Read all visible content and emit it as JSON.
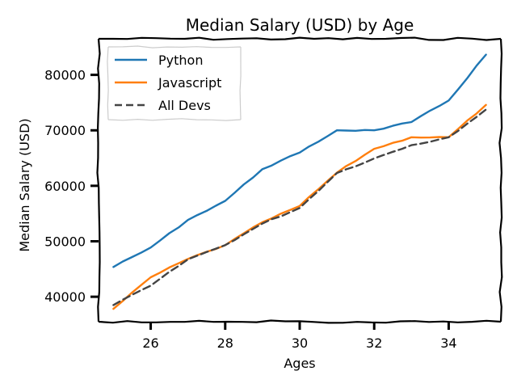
{
  "chart_data": {
    "type": "line",
    "title": "Median Salary (USD) by Age",
    "xlabel": "Ages",
    "ylabel": "Median Salary (USD)",
    "xlim": [
      24.6,
      35.4
    ],
    "ylim": [
      35500,
      86500
    ],
    "xticks": [
      26,
      28,
      30,
      32,
      34
    ],
    "yticks": [
      40000,
      50000,
      60000,
      70000,
      80000
    ],
    "x": [
      25,
      26,
      27,
      28,
      29,
      30,
      31,
      32,
      33,
      34,
      35
    ],
    "series": [
      {
        "name": "Python",
        "color": "#1f77b4",
        "dash": "solid",
        "values": [
          45372,
          48876,
          53850,
          57287,
          63016,
          65998,
          70003,
          70000,
          71496,
          75370,
          83640
        ]
      },
      {
        "name": "Javascript",
        "color": "#ff7f0e",
        "dash": "solid",
        "values": [
          37810,
          43515,
          46823,
          49293,
          53437,
          56373,
          62375,
          66674,
          68745,
          68746,
          74583
        ]
      },
      {
        "name": "All Devs",
        "color": "#444444",
        "dash": "dashed",
        "values": [
          38496,
          42000,
          46752,
          49320,
          53200,
          56000,
          62316,
          64928,
          67317,
          68748,
          73752
        ]
      }
    ],
    "grid": false,
    "legend_position": "top-left",
    "style": "xkcd"
  }
}
